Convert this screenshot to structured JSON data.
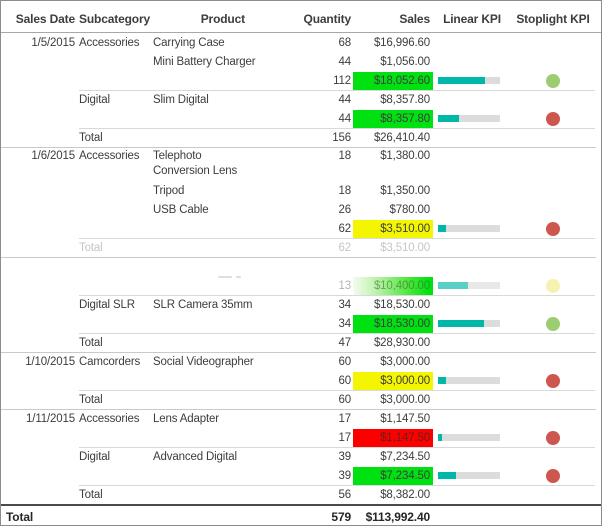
{
  "report": {
    "columns": {
      "sales_date": "Sales Date",
      "subcategory": "Subcategory",
      "product": "Product",
      "quantity": "Quantity",
      "sales": "Sales",
      "linear_kpi": "Linear KPI",
      "stoplight_kpi": "Stoplight KPI"
    },
    "colors": {
      "highlight_green": "#00e112",
      "highlight_yellow": "#f4f500",
      "highlight_red": "#fc0000",
      "kpi_bar_teal": "#00b7a8",
      "kpi_bar_background": "#dcdcdc",
      "stoplight_green": "#9ccd70",
      "stoplight_red": "#cd574f",
      "stoplight_yellow": "#ece773",
      "text": "#3d3d3d",
      "faded_text": "#c6c6c6"
    },
    "rows": [
      {
        "cls": "item",
        "date": "1/5/2015",
        "subcat": "Accessories",
        "product": "Carrying Case",
        "qty": "68",
        "sales": "$16,996.60"
      },
      {
        "cls": "item",
        "product": "Mini Battery Charger",
        "qty": "44",
        "sales": "$1,056.00"
      },
      {
        "cls": "item",
        "qty": "112",
        "sales": "$18,052.60",
        "hl": "green",
        "kpi": 75,
        "light": "green"
      },
      {
        "cls": "item",
        "sep": "sub",
        "subcat": "Digital",
        "product": "Slim Digital",
        "qty": "44",
        "sales": "$8,357.80"
      },
      {
        "cls": "item",
        "qty": "44",
        "sales": "$8,357.80",
        "hl": "green",
        "kpi": 34,
        "light": "red"
      },
      {
        "cls": "item",
        "sep": "sub",
        "subcat": "Total",
        "qty": "156",
        "sales": "$26,410.40"
      },
      {
        "cls": "item wrap",
        "sep": "full",
        "date": "1/6/2015",
        "subcat": "Accessories",
        "product": "Telephoto Conversion Lens",
        "qty": "18",
        "sales": "$1,380.00"
      },
      {
        "cls": "item",
        "product": "Tripod",
        "qty": "18",
        "sales": "$1,350.00"
      },
      {
        "cls": "item",
        "product": "USB Cable",
        "qty": "26",
        "sales": "$780.00"
      },
      {
        "cls": "item",
        "qty": "62",
        "sales": "$3,510.00",
        "hl": "yellow",
        "kpi": 13,
        "light": "red"
      },
      {
        "cls": "item faded",
        "sep": "sub",
        "subcat": "Total",
        "qty": "62",
        "sales": "$3,510.00"
      },
      {
        "cls": "item ghost",
        "sep": "full"
      },
      {
        "cls": "item fadedqty",
        "qty": "13",
        "sales": "$10,400.00",
        "hl": "gradient",
        "kpi": 48,
        "light": "yellow-faded",
        "kpiFaded": true
      },
      {
        "cls": "item",
        "sep": "sub",
        "subcat": "Digital SLR",
        "product": "SLR Camera 35mm",
        "qty": "34",
        "sales": "$18,530.00"
      },
      {
        "cls": "item",
        "qty": "34",
        "sales": "$18,530.00",
        "hl": "green",
        "kpi": 74,
        "light": "green"
      },
      {
        "cls": "item",
        "sep": "sub",
        "subcat": "Total",
        "qty": "47",
        "sales": "$28,930.00"
      },
      {
        "cls": "item",
        "sep": "full",
        "date": "1/10/2015",
        "subcat": "Camcorders",
        "product": "Social Videographer",
        "qty": "60",
        "sales": "$3,000.00"
      },
      {
        "cls": "item",
        "qty": "60",
        "sales": "$3,000.00",
        "hl": "yellow",
        "kpi": 13,
        "light": "red"
      },
      {
        "cls": "item",
        "sep": "sub",
        "subcat": "Total",
        "qty": "60",
        "sales": "$3,000.00"
      },
      {
        "cls": "item",
        "sep": "full",
        "date": "1/11/2015",
        "subcat": "Accessories",
        "product": "Lens Adapter",
        "qty": "17",
        "sales": "$1,147.50"
      },
      {
        "cls": "item",
        "qty": "17",
        "sales": "$1,147.50",
        "hl": "red",
        "kpi": 6,
        "light": "red"
      },
      {
        "cls": "item",
        "sep": "sub",
        "subcat": "Digital",
        "product": "Advanced Digital",
        "qty": "39",
        "sales": "$7,234.50"
      },
      {
        "cls": "item",
        "qty": "39",
        "sales": "$7,234.50",
        "hl": "green",
        "kpi": 29,
        "light": "red"
      },
      {
        "cls": "item",
        "sep": "sub",
        "subcat": "Total",
        "qty": "56",
        "sales": "$8,382.00"
      },
      {
        "cls": "grand",
        "label": "Total",
        "qty": "579",
        "sales": "$113,992.40"
      }
    ]
  }
}
